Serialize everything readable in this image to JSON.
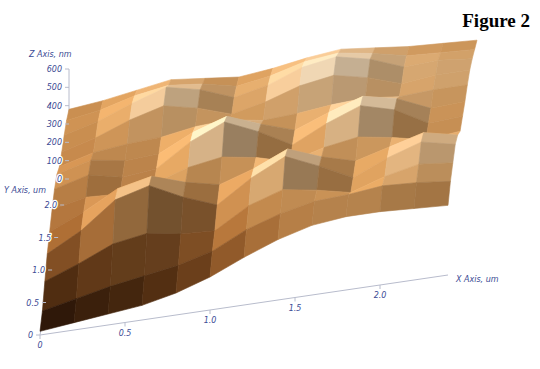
{
  "chart_data": {
    "type": "surface",
    "title": "Figure 2",
    "xlabel": "X Axis, um",
    "ylabel": "Y Axis, um",
    "zlabel": "Z Axis, nm",
    "x": [
      0,
      0.2,
      0.4,
      0.6,
      0.8,
      1,
      1.2,
      1.4,
      1.6,
      1.8,
      2,
      2.2,
      2.4
    ],
    "y": [
      0,
      0.2,
      0.4,
      0.6,
      0.8,
      1,
      1.2,
      1.4,
      1.6,
      1.8,
      2,
      2.2,
      2.4
    ],
    "z": [
      [
        20,
        40,
        60,
        80,
        120,
        180,
        260,
        330,
        380,
        400,
        400,
        390,
        380
      ],
      [
        60,
        100,
        140,
        170,
        200,
        250,
        340,
        400,
        440,
        450,
        470,
        460,
        440
      ],
      [
        150,
        220,
        300,
        330,
        300,
        290,
        400,
        460,
        430,
        390,
        450,
        490,
        470
      ],
      [
        230,
        330,
        470,
        520,
        430,
        360,
        480,
        570,
        490,
        400,
        480,
        540,
        500
      ],
      [
        280,
        360,
        460,
        500,
        440,
        400,
        460,
        540,
        470,
        420,
        470,
        520,
        480
      ],
      [
        330,
        370,
        360,
        390,
        450,
        480,
        450,
        400,
        450,
        480,
        450,
        410,
        430
      ],
      [
        370,
        420,
        380,
        400,
        520,
        600,
        520,
        420,
        510,
        580,
        530,
        430,
        440
      ],
      [
        380,
        430,
        400,
        410,
        500,
        560,
        490,
        430,
        500,
        560,
        520,
        440,
        450
      ],
      [
        350,
        400,
        420,
        430,
        460,
        470,
        440,
        450,
        470,
        480,
        460,
        470,
        470
      ],
      [
        360,
        410,
        480,
        530,
        490,
        430,
        470,
        530,
        560,
        520,
        460,
        480,
        480
      ],
      [
        380,
        430,
        500,
        560,
        520,
        450,
        490,
        560,
        590,
        550,
        480,
        490,
        470
      ],
      [
        390,
        420,
        470,
        500,
        480,
        440,
        470,
        520,
        540,
        510,
        470,
        460,
        450
      ],
      [
        380,
        400,
        430,
        460,
        440,
        420,
        440,
        470,
        490,
        470,
        450,
        440,
        430
      ]
    ],
    "xlim": [
      0,
      2.4
    ],
    "ylim": [
      0,
      2.4
    ],
    "zlim": [
      0,
      600
    ],
    "xticks": [
      0,
      0.5,
      {
        "value": 1,
        "label": "1.0"
      },
      1.5,
      {
        "value": 2,
        "label": "2.0"
      }
    ],
    "yticks": [
      0,
      0.5,
      {
        "value": 1,
        "label": "1.0"
      },
      1.5,
      {
        "value": 2,
        "label": "2.0"
      }
    ],
    "zticks": [
      0,
      100,
      200,
      300,
      400,
      500,
      600
    ]
  }
}
